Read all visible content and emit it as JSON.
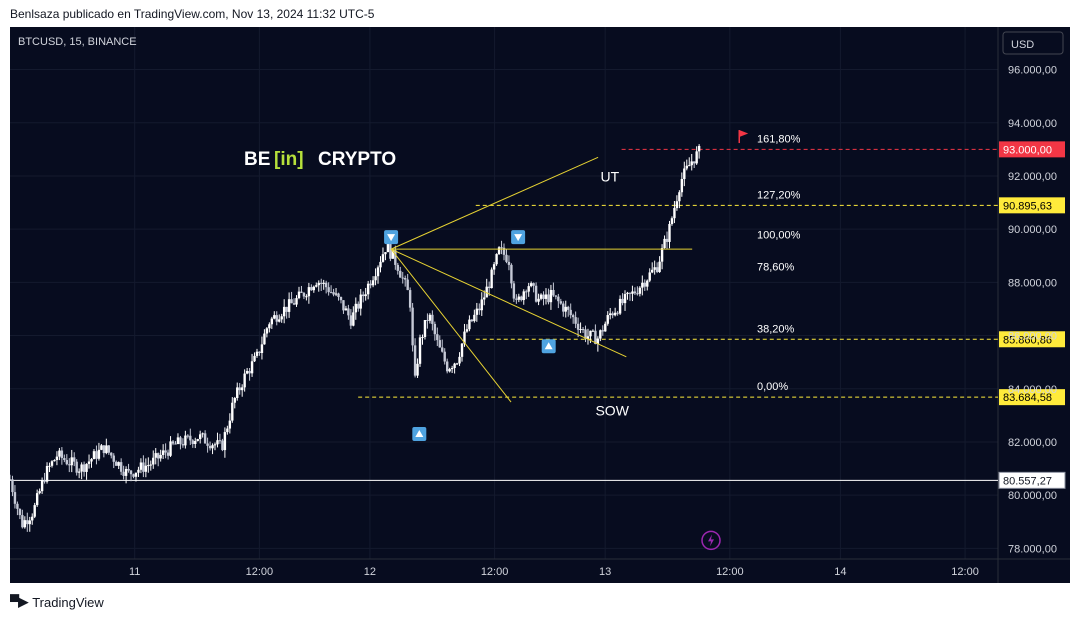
{
  "header": {
    "published_by": "Benlsaza publicado en TradingView.com, Nov 13, 2024 11:32 UTC-5"
  },
  "footer": {
    "brand": "TradingView"
  },
  "chart_data": {
    "type": "candlestick",
    "symbol": "BTCUSD, 15, BINANCE",
    "currency": "USD",
    "watermark": {
      "prefix": "BE",
      "middle": "[in]",
      "suffix": "CRYPTO"
    },
    "y_axis": {
      "min": 77600,
      "max": 97600,
      "ticks": [
        96000,
        94000,
        92000,
        90000,
        88000,
        86000,
        84000,
        82000,
        80000,
        78000
      ],
      "tick_labels": [
        "96.000,00",
        "94.000,00",
        "92.000,00",
        "90.000,00",
        "88.000,00",
        "86.000,00",
        "84.000,00",
        "82.000,00",
        "80.000,00",
        "78.000,00"
      ]
    },
    "x_axis": {
      "labels": [
        "11",
        "12:00",
        "12",
        "12:00",
        "13",
        "12:00",
        "14",
        "12:00"
      ],
      "positions": [
        1.53,
        2.06,
        2.53,
        3.06,
        3.53,
        4.06,
        4.53,
        5.06
      ],
      "range": [
        1.0,
        5.2
      ]
    },
    "price_path": [
      [
        1.0,
        80600
      ],
      [
        1.05,
        78900
      ],
      [
        1.1,
        79400
      ],
      [
        1.15,
        80800
      ],
      [
        1.2,
        81500
      ],
      [
        1.3,
        81000
      ],
      [
        1.4,
        81800
      ],
      [
        1.5,
        80800
      ],
      [
        1.6,
        81200
      ],
      [
        1.7,
        81900
      ],
      [
        1.8,
        82200
      ],
      [
        1.9,
        81800
      ],
      [
        1.95,
        83500
      ],
      [
        2.0,
        84500
      ],
      [
        2.05,
        85200
      ],
      [
        2.1,
        86500
      ],
      [
        2.15,
        86900
      ],
      [
        2.2,
        87200
      ],
      [
        2.25,
        87600
      ],
      [
        2.3,
        88100
      ],
      [
        2.35,
        87800
      ],
      [
        2.4,
        87300
      ],
      [
        2.45,
        86600
      ],
      [
        2.5,
        87500
      ],
      [
        2.55,
        88400
      ],
      [
        2.6,
        89400
      ],
      [
        2.65,
        88600
      ],
      [
        2.7,
        87400
      ],
      [
        2.72,
        84100
      ],
      [
        2.74,
        85700
      ],
      [
        2.78,
        86800
      ],
      [
        2.82,
        85600
      ],
      [
        2.86,
        84800
      ],
      [
        2.9,
        85100
      ],
      [
        2.94,
        86200
      ],
      [
        3.0,
        87100
      ],
      [
        3.05,
        88300
      ],
      [
        3.08,
        89200
      ],
      [
        3.12,
        88900
      ],
      [
        3.15,
        87100
      ],
      [
        3.2,
        88000
      ],
      [
        3.25,
        87300
      ],
      [
        3.3,
        87500
      ],
      [
        3.35,
        87100
      ],
      [
        3.4,
        86600
      ],
      [
        3.45,
        86000
      ],
      [
        3.5,
        85900
      ],
      [
        3.55,
        86800
      ],
      [
        3.6,
        87200
      ],
      [
        3.65,
        87600
      ],
      [
        3.7,
        88100
      ],
      [
        3.75,
        88600
      ],
      [
        3.8,
        89900
      ],
      [
        3.85,
        91800
      ],
      [
        3.9,
        92600
      ],
      [
        3.93,
        92900
      ]
    ],
    "series": [
      {
        "name": "BTCUSD",
        "ohlc": []
      }
    ],
    "levels": [
      {
        "label": "161,80%",
        "price": 93000.0,
        "value_label": "93.000,00",
        "color": "#f23645",
        "tag_text": "#ffffff",
        "start_x": 3.6
      },
      {
        "label": "127,20%",
        "price": 90895.63,
        "value_label": "90.895,63",
        "color": "#ffeb3b",
        "tag_text": "#000000",
        "start_x": 2.98
      },
      {
        "label": "38,20%",
        "price": 85860.86,
        "value_label": "85.860,86",
        "color": "#ffeb3b",
        "tag_text": "#000000",
        "start_x": 2.98
      },
      {
        "label": "0,00%",
        "price": 83684.58,
        "value_label": "83.684,58",
        "color": "#ffeb3b",
        "tag_text": "#000000",
        "start_x": 2.48
      }
    ],
    "fib_text_labels": [
      {
        "label": "100,00%",
        "price": 89800
      },
      {
        "label": "78,60%",
        "price": 88600
      }
    ],
    "support_line": {
      "price": 80557.27,
      "value_label": "80.557,27",
      "color": "#ffffff"
    },
    "trend_lines": [
      {
        "x1": 2.62,
        "y1": 89250,
        "x2": 3.5,
        "y2": 92700
      },
      {
        "x1": 2.62,
        "y1": 89250,
        "x2": 3.9,
        "y2": 89250
      },
      {
        "x1": 2.62,
        "y1": 89250,
        "x2": 3.62,
        "y2": 85200
      },
      {
        "x1": 2.62,
        "y1": 89250,
        "x2": 3.13,
        "y2": 83500
      }
    ],
    "annotations": [
      {
        "text": "UT",
        "x": 3.55,
        "price": 91800
      },
      {
        "text": "SOW",
        "x": 3.56,
        "price": 83000
      }
    ],
    "markers": [
      {
        "dir": "down",
        "x": 2.62,
        "price": 89700
      },
      {
        "dir": "down",
        "x": 3.16,
        "price": 89700
      },
      {
        "dir": "up",
        "x": 3.29,
        "price": 85600
      },
      {
        "dir": "up",
        "x": 2.74,
        "price": 82300
      }
    ],
    "flag": {
      "x": 4.1,
      "price": 93500,
      "color": "#f23645"
    },
    "event_icon": {
      "x": 3.98,
      "price": 78300,
      "color": "#9c27b0"
    },
    "colors": {
      "background": "#070c1f",
      "up": "#ffffff",
      "down": "#c5c9d6",
      "axis_text": "#d1d4dc"
    }
  }
}
